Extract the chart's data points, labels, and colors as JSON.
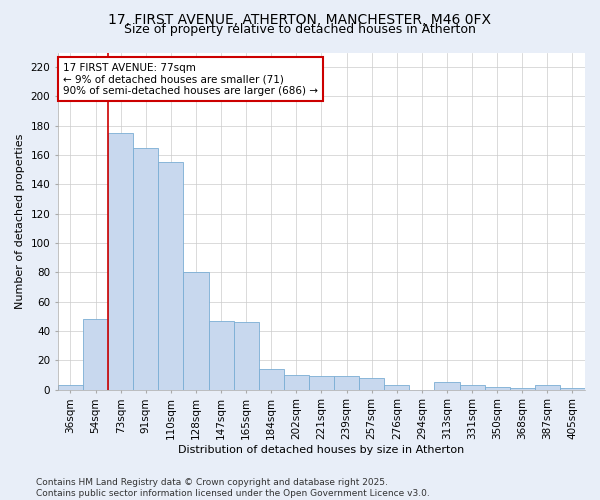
{
  "title_line1": "17, FIRST AVENUE, ATHERTON, MANCHESTER, M46 0FX",
  "title_line2": "Size of property relative to detached houses in Atherton",
  "xlabel": "Distribution of detached houses by size in Atherton",
  "ylabel": "Number of detached properties",
  "categories": [
    "36sqm",
    "54sqm",
    "73sqm",
    "91sqm",
    "110sqm",
    "128sqm",
    "147sqm",
    "165sqm",
    "184sqm",
    "202sqm",
    "221sqm",
    "239sqm",
    "257sqm",
    "276sqm",
    "294sqm",
    "313sqm",
    "331sqm",
    "350sqm",
    "368sqm",
    "387sqm",
    "405sqm"
  ],
  "values": [
    3,
    48,
    175,
    165,
    155,
    80,
    47,
    46,
    14,
    10,
    9,
    9,
    8,
    3,
    0,
    5,
    3,
    2,
    1,
    3,
    1
  ],
  "bar_color": "#c8d8ee",
  "bar_edge_color": "#7aadd4",
  "vline_color": "#cc0000",
  "vline_index": 2,
  "annotation_text": "17 FIRST AVENUE: 77sqm\n← 9% of detached houses are smaller (71)\n90% of semi-detached houses are larger (686) →",
  "annotation_box_facecolor": "#ffffff",
  "annotation_box_edgecolor": "#cc0000",
  "ylim": [
    0,
    230
  ],
  "yticks": [
    0,
    20,
    40,
    60,
    80,
    100,
    120,
    140,
    160,
    180,
    200,
    220
  ],
  "plot_bg_color": "#ffffff",
  "fig_bg_color": "#e8eef8",
  "footer_text": "Contains HM Land Registry data © Crown copyright and database right 2025.\nContains public sector information licensed under the Open Government Licence v3.0.",
  "title_fontsize": 10,
  "subtitle_fontsize": 9,
  "axis_label_fontsize": 8,
  "tick_fontsize": 7.5,
  "annotation_fontsize": 7.5,
  "footer_fontsize": 6.5
}
